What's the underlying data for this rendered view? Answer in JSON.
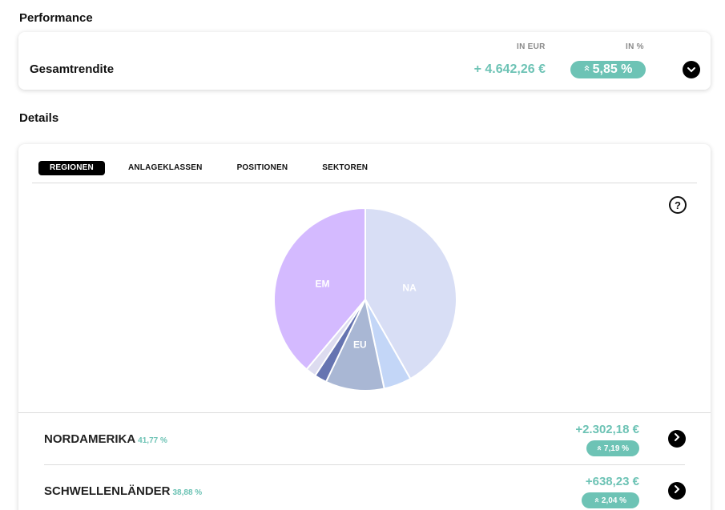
{
  "performance": {
    "title": "Performance",
    "col_eur": "IN EUR",
    "col_pct": "IN %",
    "total_label": "Gesamtrendite",
    "total_eur": "+ 4.642,26 €",
    "total_pct": "5,85 %"
  },
  "details": {
    "title": "Details",
    "tabs": [
      {
        "label": "REGIONEN",
        "active": true
      },
      {
        "label": "ANLAGEKLASSEN",
        "active": false
      },
      {
        "label": "POSITIONEN",
        "active": false
      },
      {
        "label": "SEKTOREN",
        "active": false
      }
    ],
    "help_symbol": "?"
  },
  "chart_data": {
    "type": "pie",
    "slices": [
      {
        "label": "NA",
        "value": 41.77,
        "color": "#d8def5"
      },
      {
        "label": "",
        "value": 4.9,
        "color": "#c3d6f7"
      },
      {
        "label": "EU",
        "value": 10.4,
        "color": "#a9b7d4"
      },
      {
        "label": "",
        "value": 2.2,
        "color": "#6674b1"
      },
      {
        "label": "",
        "value": 1.85,
        "color": "#dddcf0"
      },
      {
        "label": "EM",
        "value": 38.88,
        "color": "#d4baff"
      }
    ]
  },
  "regions": [
    {
      "name": "NORDAMERIKA",
      "share": "41,77 %",
      "eur": "+2.302,18 €",
      "pct": "7,19 %"
    },
    {
      "name": "SCHWELLENLÄNDER",
      "share": "38,88 %",
      "eur": "+638,23 €",
      "pct": "2,04 %"
    }
  ],
  "colors": {
    "accent": "#6dc3b5",
    "tab_active_bg": "#000000"
  },
  "icons": {
    "toggle": "chevron-down-icon",
    "row_action": "chevron-right-icon",
    "trend": "double-chevron-up-icon",
    "help": "question-circle-icon"
  }
}
